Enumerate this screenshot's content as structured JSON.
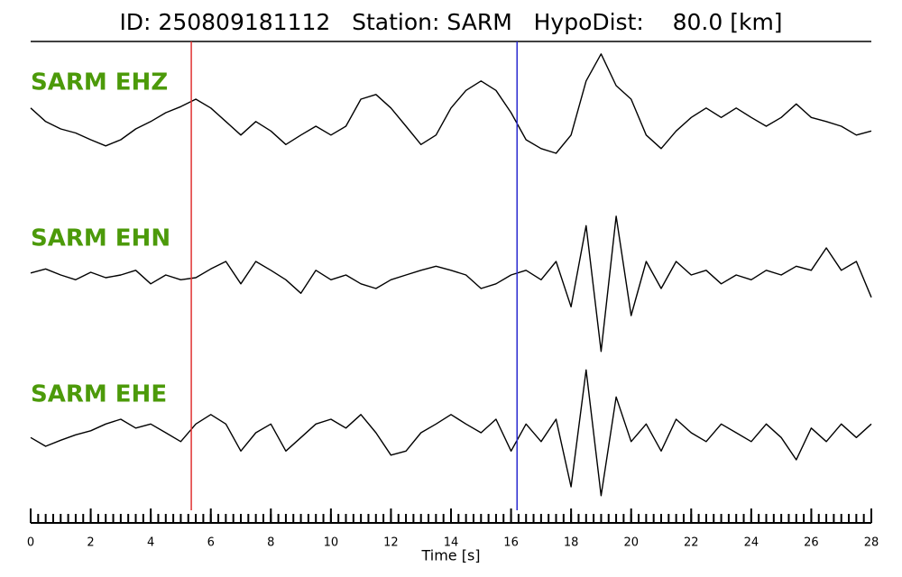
{
  "chart_data": {
    "type": "line",
    "title": "ID: 250809181112   Station: SARM   HypoDist:    80.0 [km]",
    "xlabel": "Time [s]",
    "xlim": [
      0,
      28
    ],
    "xticks": [
      0,
      2,
      4,
      6,
      8,
      10,
      12,
      14,
      16,
      18,
      20,
      22,
      24,
      26,
      28
    ],
    "xminor": 0.25,
    "ylim": [
      -1.2,
      1.2
    ],
    "label_color": "#4c9a0a",
    "markers": [
      {
        "x": 5.35,
        "color": "#e03030"
      },
      {
        "x": 16.2,
        "color": "#2a2ad0"
      }
    ],
    "x": [
      0,
      0.5,
      1,
      1.5,
      2,
      2.5,
      3,
      3.5,
      4,
      4.5,
      5,
      5.5,
      6,
      6.5,
      7,
      7.5,
      8,
      8.5,
      9,
      9.5,
      10,
      10.5,
      11,
      11.5,
      12,
      12.5,
      13,
      13.5,
      14,
      14.5,
      15,
      15.5,
      16,
      16.5,
      17,
      17.5,
      18,
      18.5,
      19,
      19.5,
      20,
      20.5,
      21,
      21.5,
      22,
      22.5,
      23,
      23.5,
      24,
      24.5,
      25,
      25.5,
      26,
      26.5,
      27,
      27.5,
      28
    ],
    "series": [
      {
        "name": "SARM EHZ",
        "color": "#000000",
        "values": [
          0.27,
          0.07,
          -0.04,
          -0.1,
          -0.2,
          -0.29,
          -0.2,
          -0.04,
          0.07,
          0.2,
          0.29,
          0.4,
          0.27,
          0.07,
          -0.13,
          0.07,
          -0.07,
          -0.27,
          -0.13,
          0,
          -0.13,
          0,
          0.4,
          0.47,
          0.27,
          0,
          -0.27,
          -0.13,
          0.27,
          0.53,
          0.67,
          0.53,
          0.2,
          -0.2,
          -0.33,
          -0.4,
          -0.13,
          0.67,
          1.07,
          0.6,
          0.4,
          -0.13,
          -0.33,
          -0.07,
          0.13,
          0.27,
          0.13,
          0.27,
          0.13,
          0,
          0.13,
          0.33,
          0.13,
          0.07,
          0,
          -0.13,
          -0.07
        ]
      },
      {
        "name": "SARM EHN",
        "color": "#000000",
        "values": [
          0.03,
          0.09,
          0,
          -0.07,
          0.04,
          -0.04,
          0,
          0.07,
          -0.13,
          0,
          -0.07,
          -0.04,
          0.09,
          0.2,
          -0.13,
          0.2,
          0.07,
          -0.07,
          -0.27,
          0.07,
          -0.07,
          0,
          -0.13,
          -0.2,
          -0.07,
          0,
          0.07,
          0.13,
          0.07,
          0,
          -0.2,
          -0.13,
          0,
          0.07,
          -0.07,
          0.2,
          -0.47,
          0.73,
          -1.13,
          0.87,
          -0.6,
          0.2,
          -0.2,
          0.2,
          0,
          0.07,
          -0.13,
          0,
          -0.07,
          0.07,
          0,
          0.13,
          0.07,
          0.4,
          0.07,
          0.2,
          -0.33
        ]
      },
      {
        "name": "SARM EHE",
        "color": "#000000",
        "values": [
          -0.07,
          -0.2,
          -0.11,
          -0.03,
          0.03,
          0.13,
          0.2,
          0.07,
          0.13,
          0,
          -0.13,
          0.13,
          0.27,
          0.13,
          -0.27,
          0,
          0.13,
          -0.27,
          -0.07,
          0.13,
          0.2,
          0.07,
          0.27,
          0,
          -0.33,
          -0.27,
          0,
          0.13,
          0.27,
          0.13,
          0,
          0.2,
          -0.27,
          0.13,
          -0.13,
          0.2,
          -0.8,
          0.93,
          -0.93,
          0.53,
          -0.13,
          0.13,
          -0.27,
          0.2,
          0,
          -0.13,
          0.13,
          0,
          -0.13,
          0.13,
          -0.07,
          -0.4,
          0.07,
          -0.13,
          0.13,
          -0.07,
          0.13
        ]
      }
    ]
  }
}
